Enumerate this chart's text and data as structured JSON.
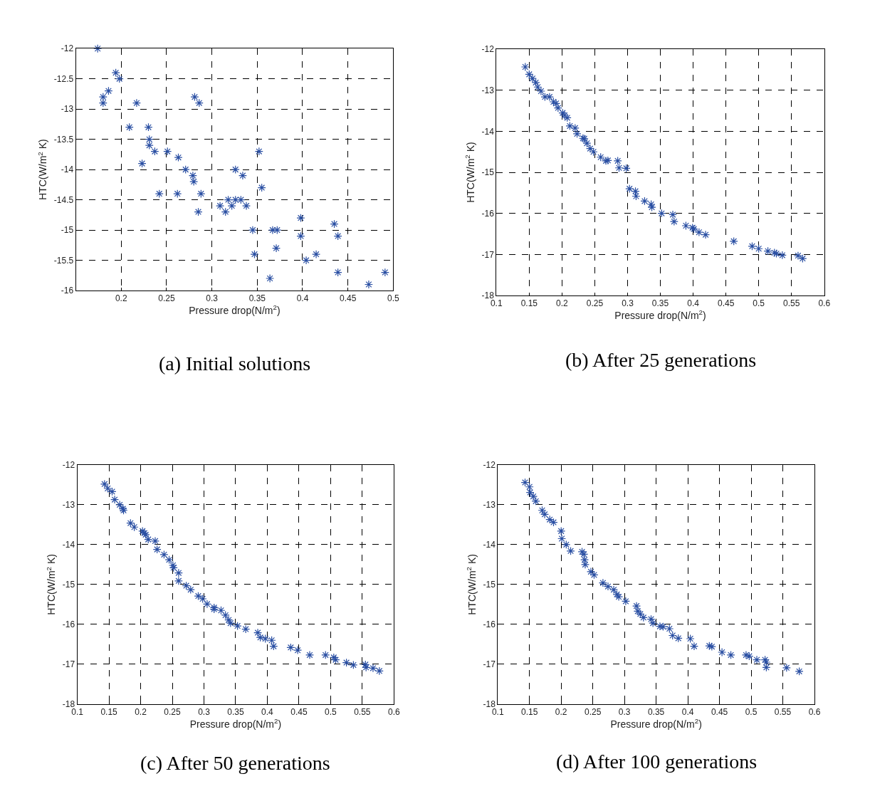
{
  "chart_data": [
    {
      "type": "scatter",
      "title": "(a) Initial solutions",
      "xlabel": "Pressure drop(N/m$^{2}$)",
      "ylabel": "HTC(W/m$^{2}$ K)",
      "marker": "cross",
      "grid": true,
      "xlim": [
        0.15,
        0.5
      ],
      "xticks": [
        0.2,
        0.25,
        0.3,
        0.35,
        0.4,
        0.45,
        0.5
      ],
      "ylim": [
        -16,
        -12
      ],
      "yticks": [
        -16,
        -15.5,
        -15,
        -14.5,
        -14,
        -13.5,
        -13,
        -12.5,
        -12
      ],
      "series": [
        {
          "color": "#2a4fa3",
          "x": [
            0.174,
            0.194,
            0.198,
            0.186,
            0.18,
            0.18,
            0.217,
            0.281,
            0.286,
            0.209,
            0.23,
            0.231,
            0.231,
            0.237,
            0.251,
            0.263,
            0.223,
            0.271,
            0.279,
            0.28,
            0.242,
            0.262,
            0.288,
            0.285,
            0.309,
            0.315,
            0.318,
            0.322,
            0.326,
            0.326,
            0.332,
            0.334,
            0.338,
            0.352,
            0.355,
            0.345,
            0.347,
            0.367,
            0.372,
            0.371,
            0.364,
            0.398,
            0.398,
            0.404,
            0.415,
            0.435,
            0.439,
            0.439,
            0.473,
            0.491
          ],
          "values": [
            -12,
            -12.4,
            -12.5,
            -12.7,
            -12.8,
            -12.9,
            -12.9,
            -12.8,
            -12.9,
            -13.3,
            -13.3,
            -13.5,
            -13.6,
            -13.7,
            -13.7,
            -13.8,
            -13.9,
            -14.0,
            -14.1,
            -14.2,
            -14.4,
            -14.4,
            -14.4,
            -14.7,
            -14.6,
            -14.7,
            -14.5,
            -14.6,
            -14.5,
            -14.0,
            -14.5,
            -14.1,
            -14.6,
            -13.7,
            -14.3,
            -15.0,
            -15.4,
            -15.0,
            -15.0,
            -15.3,
            -15.8,
            -14.8,
            -15.1,
            -15.5,
            -15.4,
            -14.9,
            -15.1,
            -15.7,
            -15.9,
            -15.7
          ]
        }
      ]
    },
    {
      "type": "scatter",
      "title": "(b) After 25 generations",
      "xlabel": "Pressure drop(N/m$^{2}$)",
      "ylabel": "HTC(W/m$^{2}$ K)",
      "marker": "cross",
      "grid": true,
      "xlim": [
        0.1,
        0.6
      ],
      "xticks": [
        0.1,
        0.15,
        0.2,
        0.25,
        0.3,
        0.35,
        0.4,
        0.45,
        0.5,
        0.55,
        0.6
      ],
      "ylim": [
        -18,
        -12
      ],
      "yticks": [
        -18,
        -17,
        -16,
        -15,
        -14,
        -13,
        -12
      ],
      "series": [
        {
          "color": "#2a4fa3",
          "x": [
            0.144,
            0.15,
            0.155,
            0.16,
            0.163,
            0.168,
            0.174,
            0.181,
            0.187,
            0.191,
            0.194,
            0.201,
            0.204,
            0.208,
            0.212,
            0.22,
            0.223,
            0.232,
            0.234,
            0.238,
            0.243,
            0.248,
            0.259,
            0.267,
            0.27,
            0.285,
            0.287,
            0.298,
            0.303,
            0.312,
            0.313,
            0.326,
            0.336,
            0.337,
            0.352,
            0.369,
            0.371,
            0.389,
            0.399,
            0.401,
            0.409,
            0.419,
            0.462,
            0.49,
            0.5,
            0.514,
            0.524,
            0.527,
            0.536,
            0.56,
            0.567
          ],
          "values": [
            -12.43,
            -12.61,
            -12.71,
            -12.81,
            -12.92,
            -13.02,
            -13.16,
            -13.16,
            -13.28,
            -13.32,
            -13.43,
            -13.55,
            -13.61,
            -13.67,
            -13.87,
            -13.92,
            -14.06,
            -14.17,
            -14.18,
            -14.29,
            -14.42,
            -14.5,
            -14.63,
            -14.72,
            -14.71,
            -14.72,
            -14.89,
            -14.9,
            -15.4,
            -15.46,
            -15.58,
            -15.7,
            -15.78,
            -15.85,
            -16.0,
            -16.03,
            -16.2,
            -16.3,
            -16.35,
            -16.38,
            -16.46,
            -16.52,
            -16.68,
            -16.8,
            -16.86,
            -16.92,
            -16.96,
            -16.98,
            -17.02,
            -17.03,
            -17.1
          ]
        }
      ]
    },
    {
      "type": "scatter",
      "title": "(c) After 50 generations",
      "xlabel": "Pressure drop(N/m$^{2}$)",
      "ylabel": "HTC(W/m$^{2}$ K)",
      "marker": "cross",
      "grid": true,
      "xlim": [
        0.1,
        0.6
      ],
      "xticks": [
        0.1,
        0.15,
        0.2,
        0.25,
        0.3,
        0.35,
        0.4,
        0.45,
        0.5,
        0.55,
        0.6
      ],
      "ylim": [
        -18,
        -12
      ],
      "yticks": [
        -18,
        -17,
        -16,
        -15,
        -14,
        -13,
        -12
      ],
      "series": [
        {
          "color": "#2a4fa3",
          "x": [
            0.143,
            0.148,
            0.155,
            0.159,
            0.167,
            0.172,
            0.173,
            0.184,
            0.19,
            0.203,
            0.206,
            0.208,
            0.212,
            0.223,
            0.226,
            0.237,
            0.245,
            0.251,
            0.252,
            0.26,
            0.26,
            0.272,
            0.279,
            0.291,
            0.298,
            0.305,
            0.316,
            0.316,
            0.327,
            0.334,
            0.339,
            0.342,
            0.353,
            0.366,
            0.385,
            0.389,
            0.397,
            0.407,
            0.41,
            0.437,
            0.448,
            0.467,
            0.492,
            0.505,
            0.508,
            0.525,
            0.536,
            0.555,
            0.556,
            0.567,
            0.577
          ],
          "values": [
            -12.48,
            -12.59,
            -12.67,
            -12.87,
            -13.0,
            -13.1,
            -13.14,
            -13.46,
            -13.56,
            -13.66,
            -13.71,
            -13.75,
            -13.87,
            -13.91,
            -14.12,
            -14.25,
            -14.38,
            -14.52,
            -14.58,
            -14.71,
            -14.91,
            -15.03,
            -15.13,
            -15.29,
            -15.36,
            -15.49,
            -15.58,
            -15.62,
            -15.65,
            -15.77,
            -15.89,
            -15.97,
            -16.04,
            -16.12,
            -16.21,
            -16.33,
            -16.36,
            -16.4,
            -16.55,
            -16.58,
            -16.65,
            -16.77,
            -16.77,
            -16.83,
            -16.89,
            -16.96,
            -17.02,
            -17.01,
            -17.08,
            -17.1,
            -17.17
          ]
        }
      ]
    },
    {
      "type": "scatter",
      "title": "(d) After 100 generations",
      "xlabel": "Pressure drop(N/m$^{2}$)",
      "ylabel": "HTC(W/m$^{2}$ K)",
      "marker": "cross",
      "grid": true,
      "xlim": [
        0.1,
        0.6
      ],
      "xticks": [
        0.1,
        0.15,
        0.2,
        0.25,
        0.3,
        0.35,
        0.4,
        0.45,
        0.5,
        0.55,
        0.6
      ],
      "ylim": [
        -18,
        -12
      ],
      "yticks": [
        -18,
        -17,
        -16,
        -15,
        -14,
        -13,
        -12
      ],
      "series": [
        {
          "color": "#2a4fa3",
          "x": [
            0.143,
            0.15,
            0.151,
            0.156,
            0.16,
            0.17,
            0.174,
            0.182,
            0.188,
            0.2,
            0.201,
            0.208,
            0.215,
            0.233,
            0.236,
            0.237,
            0.238,
            0.247,
            0.252,
            0.266,
            0.274,
            0.283,
            0.288,
            0.291,
            0.302,
            0.319,
            0.321,
            0.325,
            0.33,
            0.342,
            0.345,
            0.356,
            0.361,
            0.371,
            0.376,
            0.385,
            0.404,
            0.41,
            0.434,
            0.438,
            0.454,
            0.468,
            0.492,
            0.497,
            0.509,
            0.522,
            0.524,
            0.524,
            0.556,
            0.576
          ],
          "values": [
            -12.44,
            -12.55,
            -12.69,
            -12.79,
            -12.91,
            -13.14,
            -13.24,
            -13.37,
            -13.44,
            -13.66,
            -13.85,
            -14.0,
            -14.16,
            -14.18,
            -14.24,
            -14.38,
            -14.5,
            -14.68,
            -14.76,
            -14.96,
            -15.05,
            -15.13,
            -15.25,
            -15.31,
            -15.42,
            -15.54,
            -15.67,
            -15.74,
            -15.83,
            -15.87,
            -15.97,
            -16.05,
            -16.06,
            -16.11,
            -16.28,
            -16.35,
            -16.36,
            -16.55,
            -16.54,
            -16.56,
            -16.7,
            -16.77,
            -16.77,
            -16.8,
            -16.89,
            -16.89,
            -16.95,
            -17.08,
            -17.09,
            -17.18
          ]
        }
      ]
    }
  ]
}
